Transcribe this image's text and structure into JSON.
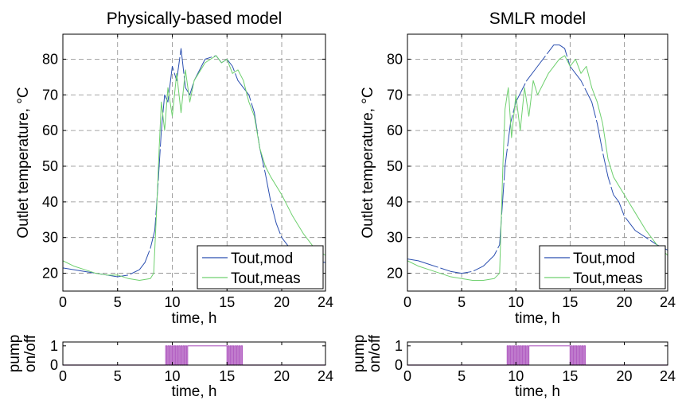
{
  "figure": {
    "colors": {
      "mod": "#2b4fb0",
      "meas": "#6fd06f",
      "pump": "#b25fc2",
      "grid": "#888888"
    }
  },
  "chart_data": [
    {
      "type": "line",
      "title": "Physically-based model",
      "xlabel": "time, h",
      "ylabel": "Outlet temperature, °C",
      "xlim": [
        0,
        24
      ],
      "ylim": [
        15,
        87
      ],
      "xticks": [
        0,
        5,
        10,
        15,
        20,
        24
      ],
      "yticks": [
        20,
        30,
        40,
        50,
        60,
        70,
        80
      ],
      "grid": true,
      "legend": {
        "position": "bottom-right",
        "entries": [
          "Tout,mod",
          "Tout,meas"
        ]
      },
      "series": [
        {
          "name": "Tout,mod",
          "style": "dashed-breaks",
          "x": [
            0,
            1,
            2,
            3,
            4,
            5,
            6,
            7,
            7.5,
            8,
            8.4,
            8.7,
            9,
            9.3,
            9.6,
            10,
            10.4,
            10.8,
            11.2,
            11.6,
            12,
            13,
            14,
            14.5,
            15,
            15.5,
            16,
            16.5,
            17,
            17.5,
            18,
            18.5,
            19,
            19.5,
            20,
            20.5,
            21,
            22,
            23,
            24
          ],
          "y": [
            21.5,
            21,
            20.5,
            20,
            19.5,
            19,
            19.5,
            21,
            23,
            27,
            32,
            45,
            60,
            70,
            68,
            78,
            74,
            83,
            72,
            70,
            74,
            80,
            81,
            79,
            80,
            78,
            74,
            72,
            70,
            65,
            55,
            48,
            40,
            34,
            30,
            28,
            26,
            24,
            23.5,
            23
          ]
        },
        {
          "name": "Tout,meas",
          "style": "solid",
          "x": [
            0,
            1,
            2,
            3,
            4,
            5,
            6,
            7,
            8,
            8.3,
            8.6,
            8.8,
            9,
            9.3,
            9.6,
            10,
            10.4,
            10.8,
            11.2,
            11.6,
            12,
            13,
            14,
            14.5,
            15,
            15.5,
            16,
            16.5,
            17,
            17.5,
            18,
            18.5,
            19,
            20,
            21,
            22,
            23,
            24
          ],
          "y": [
            23.5,
            22,
            21,
            20,
            19.5,
            19.5,
            18.5,
            18,
            18.5,
            20,
            40,
            55,
            68,
            60,
            72,
            64,
            76,
            65,
            77,
            68,
            74,
            79,
            81,
            79,
            80,
            76,
            77,
            74,
            68,
            64,
            55,
            50,
            47,
            42,
            36,
            31,
            27,
            25
          ]
        }
      ]
    },
    {
      "type": "line",
      "title": "SMLR model",
      "xlabel": "time, h",
      "ylabel": "Outlet temperature, °C",
      "xlim": [
        0,
        24
      ],
      "ylim": [
        15,
        87
      ],
      "xticks": [
        0,
        5,
        10,
        15,
        20,
        24
      ],
      "yticks": [
        20,
        30,
        40,
        50,
        60,
        70,
        80
      ],
      "grid": true,
      "legend": {
        "position": "bottom-right",
        "entries": [
          "Tout,mod",
          "Tout,meas"
        ]
      },
      "series": [
        {
          "name": "Tout,mod",
          "style": "dashed-breaks",
          "x": [
            0,
            1,
            2,
            3,
            4,
            5,
            6,
            7,
            8,
            8.5,
            9,
            9.5,
            10,
            11,
            12,
            13,
            13.5,
            14,
            14.5,
            15,
            16,
            17,
            17.5,
            18,
            18.5,
            19,
            19.5,
            20,
            21,
            22,
            23,
            24
          ],
          "y": [
            24,
            23.5,
            22.5,
            21.5,
            20.5,
            20,
            20.5,
            22,
            25,
            28,
            50,
            62,
            68,
            74,
            78,
            82,
            84,
            84,
            83,
            78,
            74,
            68,
            62,
            54,
            47,
            42,
            40,
            36,
            32,
            30,
            28,
            26.5
          ]
        },
        {
          "name": "Tout,meas",
          "style": "solid",
          "x": [
            0,
            1,
            2,
            3,
            4,
            5,
            6,
            7,
            8,
            8.5,
            8.8,
            9,
            9.3,
            9.6,
            10,
            10.4,
            10.8,
            11.2,
            11.6,
            12,
            13,
            14,
            14.5,
            15,
            15.5,
            16,
            16.5,
            17,
            17.5,
            18,
            18.5,
            19,
            20,
            21,
            22,
            23,
            24
          ],
          "y": [
            23.5,
            22,
            21,
            20,
            19,
            18.5,
            18,
            18,
            18.5,
            20,
            50,
            66,
            72,
            58,
            70,
            60,
            72,
            64,
            74,
            70,
            76,
            80,
            81,
            78,
            80,
            76,
            78,
            72,
            68,
            62,
            52,
            47,
            42,
            37,
            32,
            28,
            25
          ]
        }
      ]
    },
    {
      "type": "line",
      "title": "",
      "xlabel": "time, h",
      "ylabel": "pump on/off",
      "xlim": [
        0,
        24
      ],
      "ylim": [
        0,
        1.2
      ],
      "xticks": [
        0,
        5,
        10,
        15,
        20,
        24
      ],
      "yticks": [
        0,
        1
      ],
      "grid": false,
      "series": [
        {
          "name": "",
          "style": "step",
          "x": [
            0,
            9.4,
            9.5,
            9.6,
            9.7,
            9.8,
            9.9,
            10.0,
            10.1,
            10.2,
            10.3,
            10.4,
            10.5,
            10.6,
            10.7,
            10.8,
            10.9,
            11.0,
            11.1,
            11.2,
            11.3,
            11.4,
            14.9,
            15.0,
            15.1,
            15.2,
            15.3,
            15.4,
            15.5,
            15.6,
            15.7,
            15.8,
            15.9,
            16.0,
            16.1,
            16.2,
            16.3,
            16.4,
            16.5,
            24
          ],
          "y": [
            0,
            1,
            0,
            1,
            0,
            1,
            0,
            1,
            0,
            1,
            0,
            1,
            0,
            1,
            0,
            1,
            0,
            1,
            0,
            1,
            0,
            1,
            1,
            0,
            1,
            0,
            1,
            0,
            1,
            0,
            1,
            0,
            1,
            0,
            1,
            0,
            1,
            0,
            0,
            0
          ]
        }
      ]
    },
    {
      "type": "line",
      "title": "",
      "xlabel": "time, h",
      "ylabel": "pump on/off",
      "xlim": [
        0,
        24
      ],
      "ylim": [
        0,
        1.2
      ],
      "xticks": [
        0,
        5,
        10,
        15,
        20,
        24
      ],
      "yticks": [
        0,
        1
      ],
      "grid": false,
      "series": [
        {
          "name": "",
          "style": "step",
          "x": [
            0,
            9.2,
            9.3,
            9.4,
            9.5,
            9.6,
            9.7,
            9.8,
            9.9,
            10.0,
            10.1,
            10.2,
            10.3,
            10.4,
            10.5,
            10.6,
            10.7,
            10.8,
            10.9,
            11.0,
            11.1,
            11.2,
            14.9,
            15.0,
            15.1,
            15.2,
            15.3,
            15.4,
            15.5,
            15.6,
            15.7,
            15.8,
            15.9,
            16.0,
            16.1,
            16.2,
            16.3,
            16.4,
            24
          ],
          "y": [
            0,
            1,
            0,
            1,
            0,
            1,
            0,
            1,
            0,
            1,
            0,
            1,
            0,
            1,
            0,
            1,
            0,
            1,
            0,
            1,
            0,
            1,
            1,
            0,
            1,
            0,
            1,
            0,
            1,
            0,
            1,
            0,
            1,
            0,
            1,
            0,
            1,
            0,
            0
          ]
        }
      ]
    }
  ]
}
